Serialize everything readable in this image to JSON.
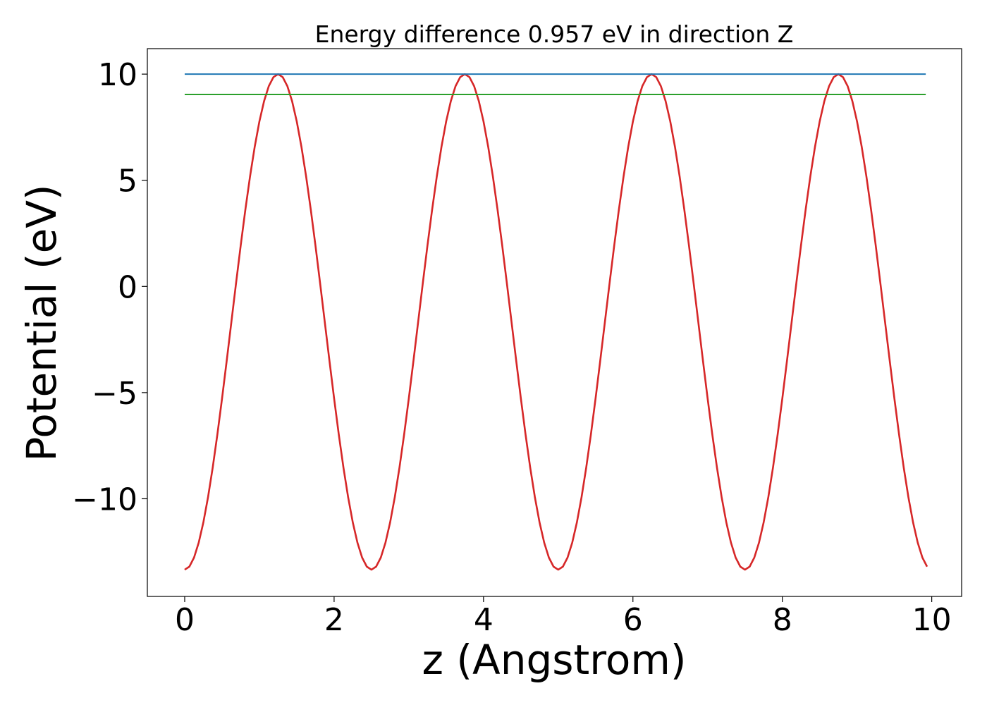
{
  "chart_data": {
    "type": "line",
    "title": "Energy difference 0.957 eV in direction Z",
    "xlabel": "z (Angstrom)",
    "ylabel": "Potential (eV)",
    "xlim": [
      -0.5,
      10.4
    ],
    "ylim": [
      -14.6,
      11.2
    ],
    "x_ticks": [
      0,
      2,
      4,
      6,
      8,
      10
    ],
    "x_tick_labels": [
      "0",
      "2",
      "4",
      "6",
      "8",
      "10"
    ],
    "y_ticks": [
      -10,
      -5,
      0,
      5,
      10
    ],
    "y_tick_labels": [
      "−10",
      "−5",
      "0",
      "5",
      "10"
    ],
    "grid": false,
    "series": [
      {
        "color": "#d62728",
        "curve": {
          "form": "center + amplitude * cos(2*pi*(x - peak_x)/period)",
          "center": -1.67,
          "amplitude": 11.67,
          "period": 2.5,
          "peak_x": 1.25,
          "x_start": 0.0,
          "x_end": 9.92,
          "x_step": 0.0625
        }
      },
      {
        "color": "#1f77b4",
        "x": [
          0.0,
          9.92
        ],
        "y": [
          10.0,
          10.0
        ]
      },
      {
        "color": "#2ca02c",
        "x": [
          0.0,
          9.92
        ],
        "y": [
          9.043,
          9.043
        ]
      }
    ]
  }
}
